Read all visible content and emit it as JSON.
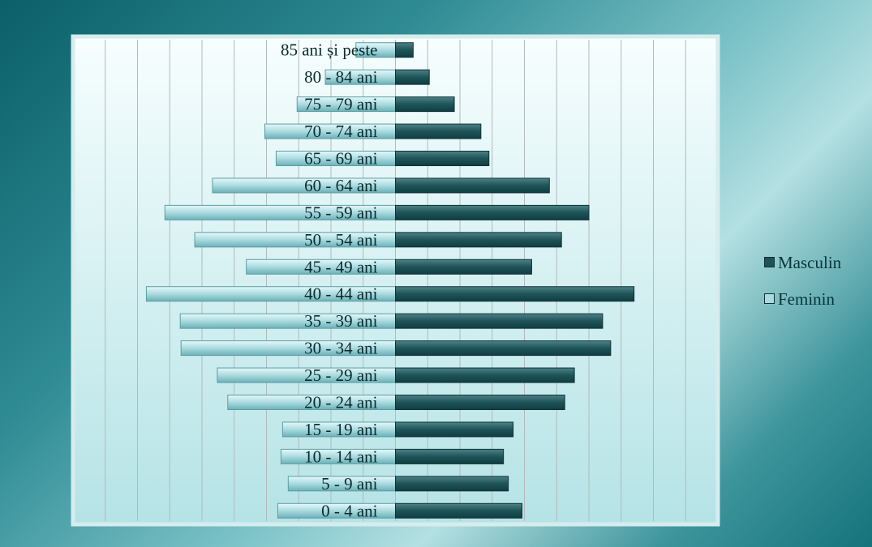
{
  "chart_data": {
    "type": "bar",
    "orientation": "horizontal",
    "layout": "population-pyramid",
    "categories": [
      "0 - 4 ani",
      "5 - 9 ani",
      "10 - 14 ani",
      "15 - 19 ani",
      "20 - 24 ani",
      "25 - 29 ani",
      "30 - 34 ani",
      "35 - 39 ani",
      "40 - 44 ani",
      "45 - 49 ani",
      "50 - 54 ani",
      "55 - 59 ani",
      "60 - 64 ani",
      "65 - 69 ani",
      "70 - 74 ani",
      "75 - 79 ani",
      "80 - 84 ani",
      "85 ani și peste"
    ],
    "series": [
      {
        "name": "Masculin",
        "values": [
          157,
          140,
          134,
          146,
          210,
          222,
          267,
          257,
          296,
          169,
          206,
          240,
          191,
          116,
          106,
          73,
          42,
          22
        ]
      },
      {
        "name": "Feminin",
        "values": [
          146,
          133,
          142,
          140,
          208,
          221,
          266,
          267,
          309,
          185,
          249,
          286,
          227,
          148,
          162,
          122,
          87,
          49
        ]
      }
    ],
    "title": "",
    "xlabel": "",
    "ylabel": "",
    "xlim": [
      -400,
      400
    ],
    "grid": true,
    "legend_position": "right",
    "colors": {
      "Masculin": "#1e5458",
      "Feminin": "#a9dbe0"
    }
  }
}
